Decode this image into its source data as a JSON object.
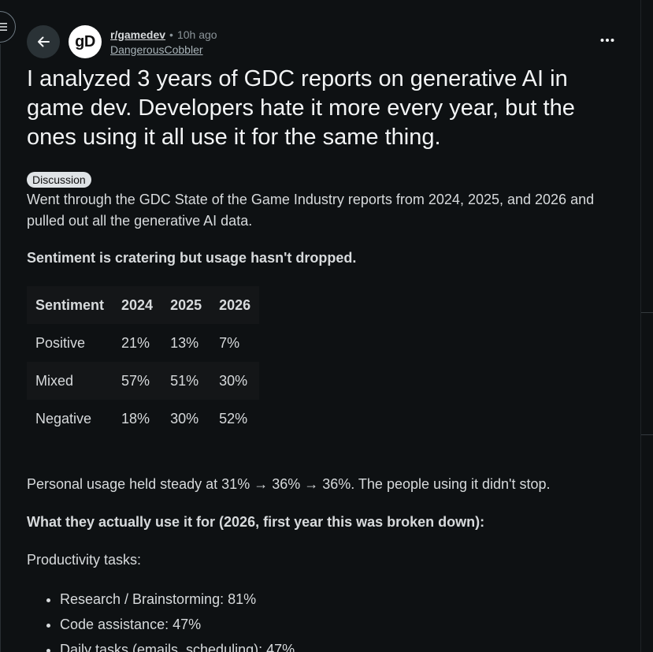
{
  "post": {
    "subreddit": "r/gamedev",
    "separator": "•",
    "time": "10h ago",
    "author": "DangerousCobbler",
    "avatar_text": "gD",
    "title": "I analyzed 3 years of GDC reports on generative AI in game dev. Developers hate it more every year, but the ones using it all use it for the same thing.",
    "flair": "Discussion",
    "intro": "Went through the GDC State of the Game Industry reports from 2024, 2025, and 2026 and pulled out all the generative AI data.",
    "sentiment_heading": "Sentiment is cratering but usage hasn't dropped.",
    "usage_text": "Personal usage held steady at 31% → 36% → 36%. The people using it didn't stop.",
    "uses_heading": "What they actually use it for (2026, first year this was broken down):",
    "productivity_label": "Productivity tasks:"
  },
  "table": {
    "headers": [
      "Sentiment",
      "2024",
      "2025",
      "2026"
    ],
    "rows": [
      [
        "Positive",
        "21%",
        "13%",
        "7%"
      ],
      [
        "Mixed",
        "57%",
        "51%",
        "30%"
      ],
      [
        "Negative",
        "18%",
        "30%",
        "52%"
      ]
    ]
  },
  "uses": [
    "Research / Brainstorming: 81%",
    "Code assistance: 47%",
    "Daily tasks (emails, scheduling): 47%"
  ],
  "icons": {
    "menu": "hamburger-icon",
    "back": "arrow-left-icon",
    "more": "ellipsis-icon"
  },
  "colors": {
    "background": "#0e1113",
    "text": "#d7dadc",
    "flair_bg": "#dfe3e6"
  }
}
